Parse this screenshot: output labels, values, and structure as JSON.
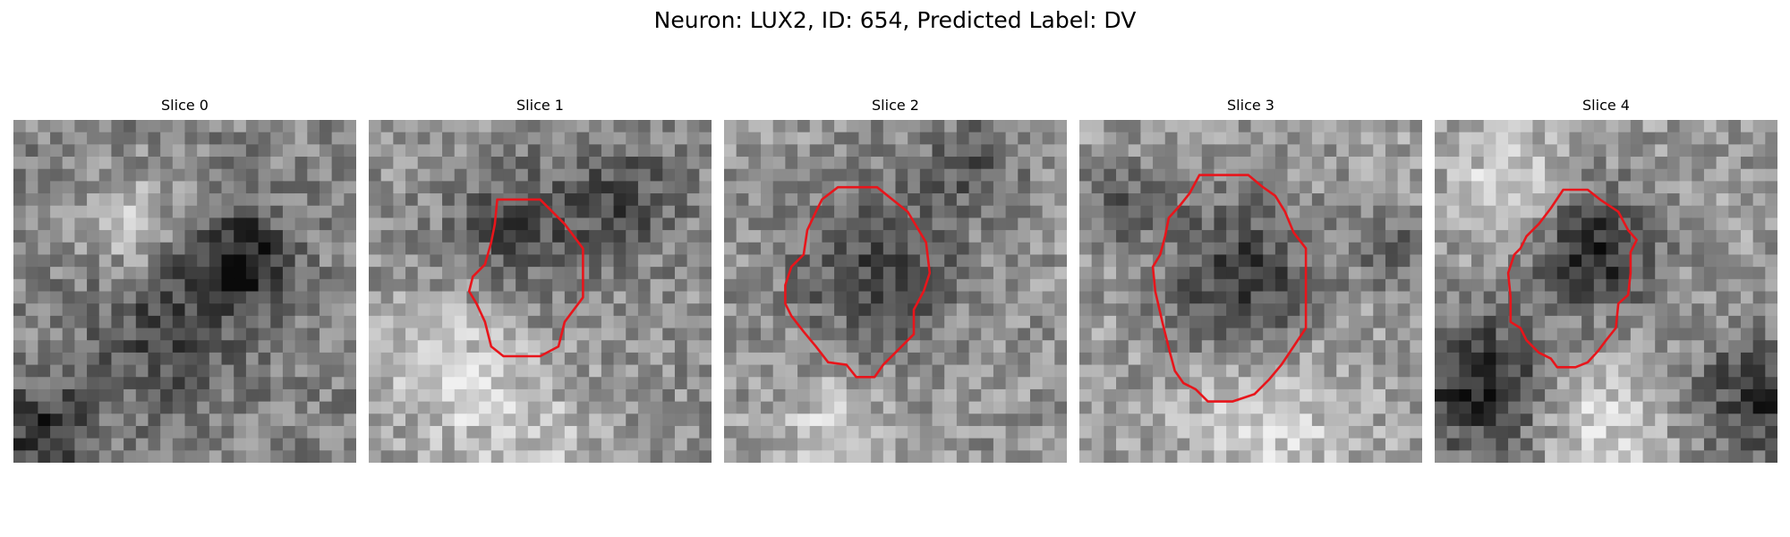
{
  "figure": {
    "title": "Neuron: LUX2, ID: 654, Predicted Label: DV",
    "contour_color": "#e8151b"
  },
  "panels": [
    {
      "title": "Slice 0",
      "has_contour": false
    },
    {
      "title": "Slice 1",
      "has_contour": true
    },
    {
      "title": "Slice 2",
      "has_contour": true
    },
    {
      "title": "Slice 3",
      "has_contour": true
    },
    {
      "title": "Slice 4",
      "has_contour": true
    }
  ]
}
